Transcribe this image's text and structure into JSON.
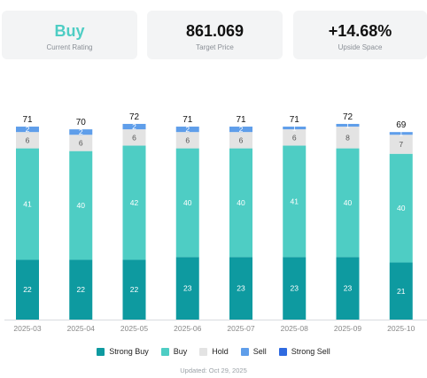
{
  "summary": {
    "rating": {
      "value": "Buy",
      "label": "Current Rating"
    },
    "target": {
      "value": "861.069",
      "label": "Target Price"
    },
    "upside": {
      "value": "+14.68%",
      "label": "Upside Space"
    }
  },
  "chart_data": {
    "type": "bar",
    "stacked": true,
    "categories": [
      "2025-03",
      "2025-04",
      "2025-05",
      "2025-06",
      "2025-07",
      "2025-08",
      "2025-09",
      "2025-10"
    ],
    "series": [
      {
        "name": "Strong Buy",
        "color": "#0e9aa0",
        "values": [
          22,
          22,
          22,
          23,
          23,
          23,
          23,
          21
        ]
      },
      {
        "name": "Buy",
        "color": "#4ecdc4",
        "values": [
          41,
          40,
          42,
          40,
          40,
          41,
          40,
          40
        ]
      },
      {
        "name": "Hold",
        "color": "#e3e3e3",
        "values": [
          6,
          6,
          6,
          6,
          6,
          6,
          8,
          7
        ]
      },
      {
        "name": "Sell",
        "color": "#5f9eea",
        "values": [
          2,
          2,
          2,
          2,
          2,
          1,
          1,
          1
        ]
      },
      {
        "name": "Strong Sell",
        "color": "#2f6ae0",
        "values": [
          0,
          0,
          0,
          0,
          0,
          0,
          0,
          0
        ]
      }
    ],
    "totals": [
      71,
      70,
      72,
      71,
      71,
      71,
      72,
      69
    ],
    "legend_position": "bottom",
    "grid": false
  },
  "footer": {
    "updated": "Updated: Oct 29, 2025"
  }
}
